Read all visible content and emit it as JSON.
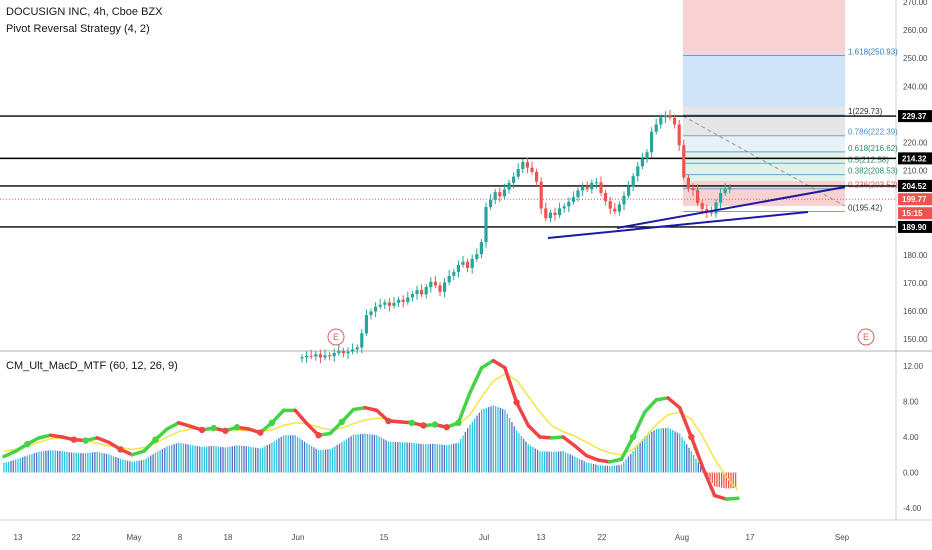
{
  "header": {
    "title": "DOCUSIGN INC, 4h, Cboe BZX",
    "strategy": "Pivot Reversal Strategy (4, 2)",
    "indicator": "CM_Ult_MacD_MTF (60, 12, 26, 9)"
  },
  "colors": {
    "bull": "#26a69a",
    "bear": "#ef5350",
    "trend": "#1a1aa6",
    "macd_up": "#46d246",
    "macd_down": "#ef4444",
    "signal": "#f2e640",
    "fib_line": "#4a90c8",
    "earnings": "#e06060"
  },
  "chart_data": [
    {
      "type": "candlestick",
      "title": "DOCUSIGN INC, 4h, Cboe BZX",
      "ylim": [
        145,
        270
      ],
      "price_ticks": [
        "270.00",
        "260.00",
        "250.00",
        "240.00",
        "230.00",
        "220.00",
        "210.00",
        "200.00",
        "190.00",
        "180.00",
        "170.00",
        "160.00",
        "150.00"
      ],
      "x_ticks": [
        "13",
        "22",
        "May",
        "8",
        "18",
        "Jun",
        "15",
        "Jul",
        "13",
        "22",
        "Aug",
        "17",
        "Sep"
      ],
      "closes": [
        143.5,
        144.0,
        143.8,
        144.6,
        143.4,
        144.2,
        143.9,
        145.0,
        145.8,
        144.9,
        145.5,
        146.3,
        147.0,
        152.0,
        158.5,
        159.8,
        161.5,
        162.2,
        163.0,
        161.8,
        162.9,
        164.0,
        163.2,
        164.8,
        166.0,
        167.4,
        165.9,
        168.5,
        170.4,
        169.1,
        166.8,
        170.2,
        172.5,
        173.9,
        176.4,
        177.5,
        175.3,
        178.5,
        180.2,
        184.5,
        197.0,
        199.5,
        202.3,
        200.8,
        203.2,
        205.6,
        207.8,
        210.5,
        213.0,
        211.0,
        209.5,
        206.0,
        196.5,
        193.0,
        195.0,
        194.1,
        196.5,
        197.2,
        198.8,
        200.5,
        202.9,
        204.1,
        203.3,
        205.6,
        205.8,
        202.0,
        199.1,
        196.4,
        195.4,
        197.9,
        201.0,
        204.2,
        208.0,
        211.5,
        214.2,
        216.5,
        223.8,
        226.4,
        228.9,
        229.5,
        228.8,
        226.4,
        219.0,
        207.5,
        203.8,
        203.0,
        198.4,
        196.3,
        195.1,
        194.7,
        198.6,
        202.0,
        203.3,
        204.0
      ],
      "series_values": {
        "fib_levels": [
          {
            "ratio": "1.618",
            "value": 250.93,
            "label": "1.618(250.93)"
          },
          {
            "ratio": "1",
            "value": 229.73,
            "label": "1(229.73)"
          },
          {
            "ratio": "0.786",
            "value": 222.39,
            "label": "0.786(222.39)"
          },
          {
            "ratio": "0.618",
            "value": 216.62,
            "label": "0.618(216.62)"
          },
          {
            "ratio": "0.5",
            "value": 212.58,
            "label": "0.5(212.58)"
          },
          {
            "ratio": "0.382",
            "value": 208.53,
            "label": "0.382(208.53)"
          },
          {
            "ratio": "0.236",
            "value": 203.52,
            "label": "0.236(203.52)"
          },
          {
            "ratio": "0",
            "value": 195.42,
            "label": "0(195.42)"
          }
        ],
        "horizontal_levels": [
          229.37,
          214.32,
          204.52,
          189.9
        ],
        "current_price": 199.77,
        "tags": [
          {
            "text": "229.37",
            "value": 229.37,
            "color": "#000000"
          },
          {
            "text": "214.32",
            "value": 214.32,
            "color": "#000000"
          },
          {
            "text": "204.52",
            "value": 204.52,
            "color": "#000000"
          },
          {
            "text": "199.77",
            "value": 199.77,
            "color": "#ef5350"
          },
          {
            "text": "15:15",
            "value": 194.8,
            "color": "#ef5350"
          },
          {
            "text": "189.90",
            "value": 189.9,
            "color": "#000000"
          }
        ]
      },
      "earnings_label": "E"
    },
    {
      "type": "line",
      "title": "CM_Ult_MacD_MTF (60, 12, 26, 9)",
      "ylim": [
        -6,
        14
      ],
      "y_ticks": [
        "12.00",
        "8.00",
        "4.00",
        "0.00",
        "-4.00"
      ],
      "macd": [
        1.8,
        2.4,
        3.2,
        3.9,
        4.2,
        4.0,
        3.7,
        3.6,
        3.9,
        3.4,
        2.6,
        2.0,
        2.4,
        3.7,
        4.9,
        5.6,
        5.2,
        4.8,
        5.0,
        4.7,
        5.1,
        4.9,
        4.5,
        5.6,
        7.0,
        7.0,
        5.5,
        4.2,
        4.4,
        5.7,
        7.1,
        7.3,
        7.0,
        5.8,
        5.7,
        5.6,
        5.3,
        5.4,
        5.1,
        5.6,
        9.0,
        11.8,
        12.6,
        11.8,
        7.9,
        5.3,
        4.0,
        3.9,
        4.0,
        3.0,
        1.9,
        1.4,
        1.2,
        1.5,
        4.0,
        6.8,
        8.2,
        8.4,
        7.3,
        4.0,
        0.5,
        -2.6,
        -3.0,
        -2.9
      ],
      "signal": [
        2.4,
        2.6,
        3.0,
        3.4,
        3.8,
        3.9,
        3.8,
        3.6,
        3.3,
        3.0,
        2.8,
        2.6,
        2.8,
        3.3,
        4.0,
        4.6,
        4.9,
        4.9,
        4.9,
        4.8,
        4.8,
        4.7,
        4.6,
        4.8,
        5.3,
        5.6,
        5.5,
        5.1,
        4.8,
        5.0,
        5.5,
        5.9,
        6.1,
        6.0,
        5.8,
        5.6,
        5.4,
        5.3,
        5.2,
        5.4,
        6.5,
        8.5,
        10.3,
        11.1,
        10.4,
        8.6,
        6.8,
        5.3,
        4.6,
        4.1,
        3.4,
        2.7,
        2.2,
        2.0,
        2.6,
        3.9,
        5.4,
        6.5,
        6.8,
        6.0,
        4.0,
        1.5,
        -0.5,
        -2.0
      ],
      "series": [
        {
          "name": "MACD",
          "values": "macd"
        },
        {
          "name": "Signal",
          "values": "signal"
        }
      ]
    }
  ]
}
